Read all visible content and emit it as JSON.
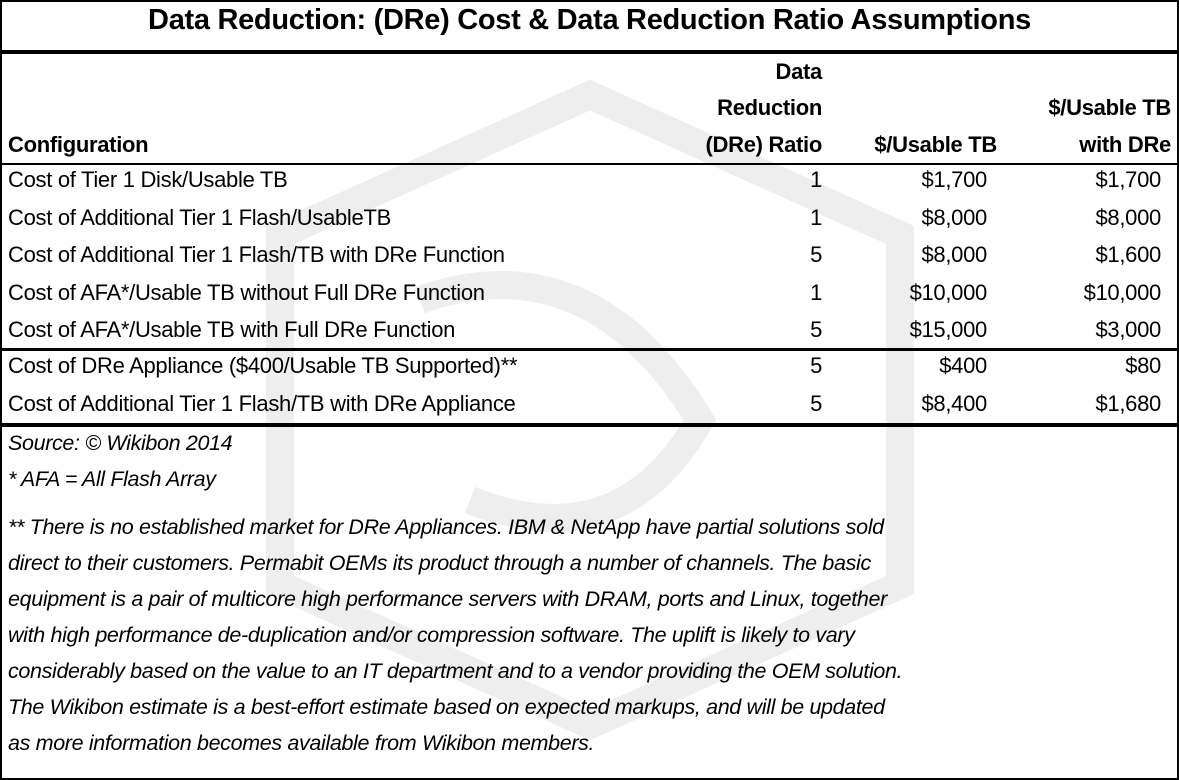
{
  "title": "Data Reduction: (DRe) Cost & Data Reduction Ratio Assumptions",
  "headers": {
    "configuration": "Configuration",
    "ratio": [
      "Data",
      "Reduction",
      "(DRe) Ratio"
    ],
    "usable": "$/Usable TB",
    "usable_dre": [
      "$/Usable TB",
      "with DRe"
    ]
  },
  "rows": [
    {
      "config": "Cost of Tier 1 Disk/Usable TB",
      "ratio": "1",
      "usable": "$1,700",
      "usable_dre": "$1,700"
    },
    {
      "config": "Cost of Additional Tier 1 Flash/UsableTB",
      "ratio": "1",
      "usable": "$8,000",
      "usable_dre": "$8,000"
    },
    {
      "config": "Cost of Additional Tier 1 Flash/TB with DRe Function",
      "ratio": "5",
      "usable": "$8,000",
      "usable_dre": "$1,600"
    },
    {
      "config": "Cost of AFA*/Usable TB without Full DRe Function",
      "ratio": "1",
      "usable": "$10,000",
      "usable_dre": "$10,000"
    },
    {
      "config": "Cost of AFA*/Usable TB with Full DRe Function",
      "ratio": "5",
      "usable": "$15,000",
      "usable_dre": "$3,000"
    },
    {
      "config": "Cost of DRe Appliance ($400/Usable TB Supported)**",
      "ratio": "5",
      "usable": "$400",
      "usable_dre": "$80"
    },
    {
      "config": "Cost of Additional Tier 1 Flash/TB with DRe Appliance",
      "ratio": "5",
      "usable": "$8,400",
      "usable_dre": "$1,680"
    }
  ],
  "notes": {
    "source": "Source: © Wikibon 2014",
    "afa": "* AFA = All Flash Array",
    "appliance_lines": [
      "** There is no established market for DRe Appliances. IBM & NetApp have partial solutions sold",
      "direct to their customers. Permabit OEMs its product through a number of channels. The basic",
      "equipment is a pair of multicore high performance servers with DRAM, ports and Linux, together",
      "with high performance de-duplication and/or compression software. The uplift is likely to vary",
      "considerably based on the value to an IT department and to a vendor providing the OEM solution.",
      "The Wikibon estimate is a best-effort estimate based on expected markups, and will be updated",
      "as more information becomes available from Wikibon members."
    ]
  },
  "watermark": "wikibon"
}
